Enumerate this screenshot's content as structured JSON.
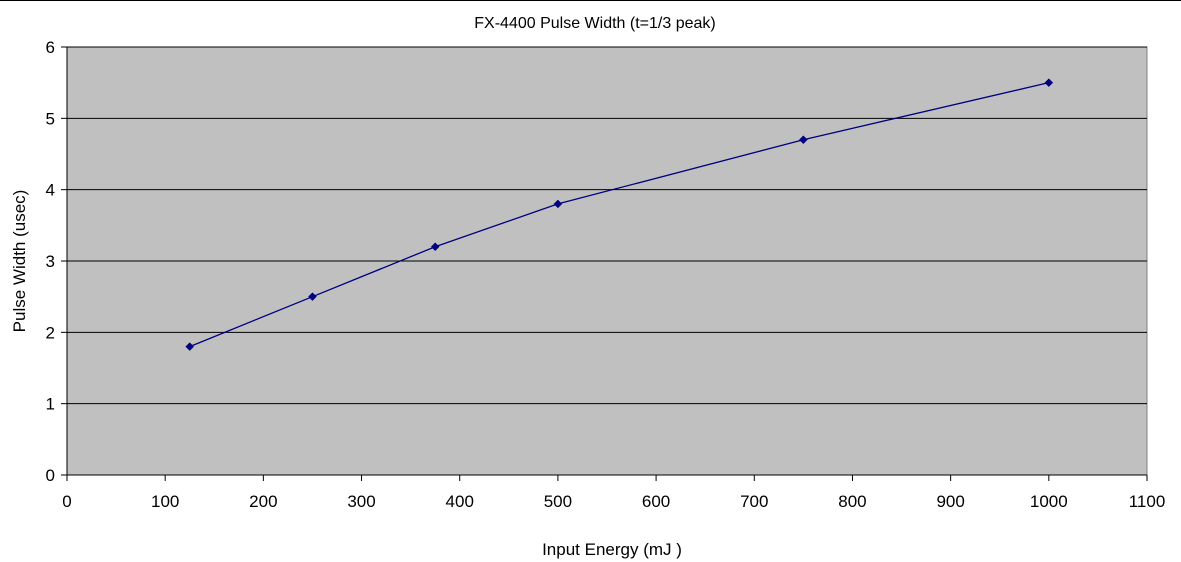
{
  "chart_data": {
    "type": "scatter",
    "title": "FX-4400 Pulse Width (t=1/3 peak)",
    "xlabel": "Input Energy (mJ )",
    "ylabel": "Pulse Width (usec)",
    "xlim": [
      0,
      1100
    ],
    "ylim": [
      0,
      6
    ],
    "xticks": [
      0,
      100,
      200,
      300,
      400,
      500,
      600,
      700,
      800,
      900,
      1000,
      1100
    ],
    "yticks": [
      0,
      1,
      2,
      3,
      4,
      5,
      6
    ],
    "grid": "horizontal major gridlines",
    "legend": "none",
    "markers": "diamond",
    "lines": "connected",
    "series": [
      {
        "x": [
          125,
          250,
          375,
          500,
          750,
          1000
        ],
        "y": [
          1.8,
          2.5,
          3.2,
          3.8,
          4.7,
          5.5
        ]
      }
    ]
  },
  "colors": {
    "plot_background": "#c0c0c0",
    "series_color": "#000080",
    "gridline": "#000000",
    "page_background": "#ffffff"
  }
}
